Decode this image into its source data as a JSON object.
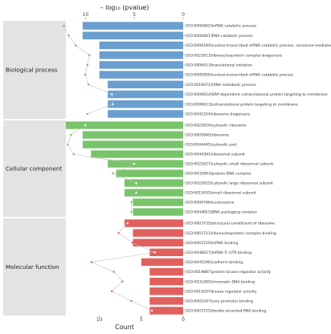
{
  "chart_data": {
    "type": "bar",
    "top_axis_label": "– log₁₀ (pvalue)",
    "bottom_axis_label": "Count",
    "top_ticks": [
      "10",
      "5",
      "0"
    ],
    "bottom_ticks": [
      "10",
      "5",
      "0"
    ],
    "count_range": [
      0,
      14
    ],
    "pvalue_range": [
      0,
      12
    ],
    "colors": {
      "Biological process": "#6a9fd0",
      "Cellular component": "#79c46b",
      "Molecular function": "#e0605e",
      "panel_bg": "#e3e3e3",
      "line": "#bfbfbf",
      "dot_light": "#ffffff"
    },
    "categories": [
      {
        "name": "Biological process",
        "terms": [
          {
            "label": "[GO:0006402]mRNA catabolic process",
            "count": 12,
            "pvalue": 12.2
          },
          {
            "label": "[GO:0006401]RNA catabolic process",
            "count": 12,
            "pvalue": 11.7
          },
          {
            "label": "[GO:0000184]nuclear-transcribed mRNA catabolic process, nonsense-mediated decay",
            "count": 10,
            "pvalue": 11.0
          },
          {
            "label": "[GO:0022613]ribonucleoprotein complex biogenesis",
            "count": 10,
            "pvalue": 9.6
          },
          {
            "label": "[GO:0006413]translational initiation",
            "count": 10,
            "pvalue": 9.8
          },
          {
            "label": "[GO:0000956]nuclear-transcribed mRNA catabolic process",
            "count": 10,
            "pvalue": 10.0
          },
          {
            "label": "[GO:0016072]rRNA metabolic process",
            "count": 9,
            "pvalue": 9.7
          },
          {
            "label": "[GO:0006614]SRP-dependent cotranslational protein targeting to membrane",
            "count": 9,
            "pvalue": 7.3
          },
          {
            "label": "[GO:0006613]cotranslational protein targeting to membrane",
            "count": 9,
            "pvalue": 7.2
          },
          {
            "label": "[GO:0042254]ribosome biogenesis",
            "count": 9,
            "pvalue": 9.8
          }
        ]
      },
      {
        "name": "Cellular component",
        "terms": [
          {
            "label": "[GO:0022626]cytosolic ribosome",
            "count": 14,
            "pvalue": 10.0
          },
          {
            "label": "[GO:0005840]ribosome",
            "count": 12,
            "pvalue": 11.5
          },
          {
            "label": "[GO:0044445]cytosolic part",
            "count": 12,
            "pvalue": 11.8
          },
          {
            "label": "[GO:0044391]ribosomal subunit",
            "count": 11,
            "pvalue": 11.2
          },
          {
            "label": "[GO:0022627]cytosolic small ribosomal subunit",
            "count": 9,
            "pvalue": 5.0
          },
          {
            "label": "[GO:0032993]protein-DNA complex",
            "count": 8,
            "pvalue": 7.2
          },
          {
            "label": "[GO:0022625]cytosolic large ribosomal subunit",
            "count": 7,
            "pvalue": 4.8
          },
          {
            "label": "[GO:0015935]small ribosomal subunit",
            "count": 7,
            "pvalue": 4.8
          },
          {
            "label": "[GO:0000786]nucleosome",
            "count": 6,
            "pvalue": 5.3
          },
          {
            "label": "[GO:0044815]DNA packaging complex",
            "count": 6,
            "pvalue": 5.3
          }
        ]
      },
      {
        "name": "Molecular function",
        "terms": [
          {
            "label": "[GO:0003735]structural constituent of ribosome",
            "count": 7,
            "pvalue": 5.7
          },
          {
            "label": "[GO:0003723]ribonucleoprotein complex binding",
            "count": 6,
            "pvalue": 6.6
          },
          {
            "label": "[GO:0003729]mRNA binding",
            "count": 6,
            "pvalue": 5.2
          },
          {
            "label": "[GO:0048027]mRNA 5'-UTR binding",
            "count": 4,
            "pvalue": 2.9
          },
          {
            "label": "[GO:0045296]cadherin binding",
            "count": 5,
            "pvalue": 9.4
          },
          {
            "label": "[GO:0019887]protein kinase regulator activity",
            "count": 4,
            "pvalue": 7.1
          },
          {
            "label": "[GO:0031490]chromatin DNA binding",
            "count": 4,
            "pvalue": 6.2
          },
          {
            "label": "[GO:0019207]kinase regulator activity",
            "count": 4,
            "pvalue": 7.3
          },
          {
            "label": "[GO:0001047]core promoter binding",
            "count": 4,
            "pvalue": 5.3
          },
          {
            "label": "[GO:0003725]double-stranded RNA binding",
            "count": 4,
            "pvalue": 3.2
          }
        ]
      }
    ]
  }
}
